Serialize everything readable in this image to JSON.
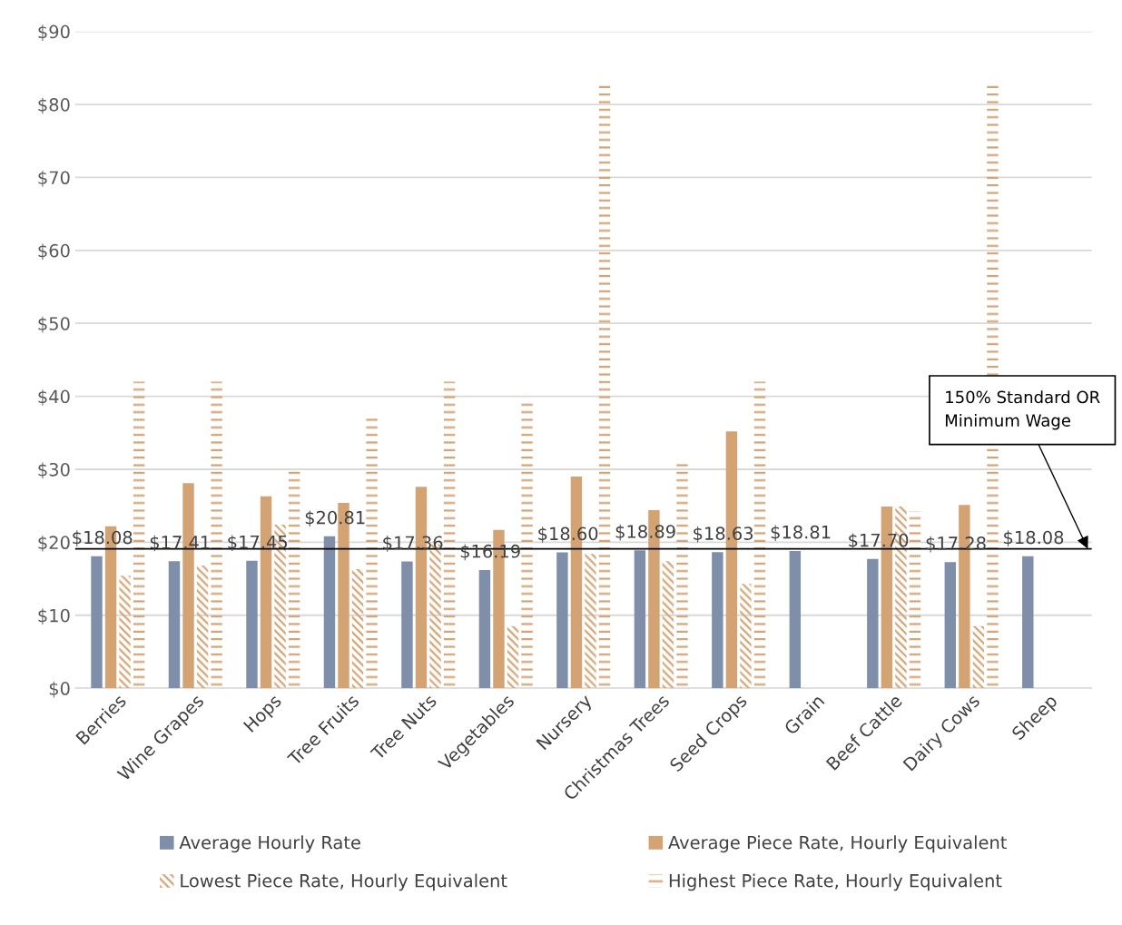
{
  "chart_data": {
    "type": "bar",
    "categories": [
      "Berries",
      "Wine Grapes",
      "Hops",
      "Tree Fruits",
      "Tree Nuts",
      "Vegetables",
      "Nursery",
      "Christmas Trees",
      "Seed Crops",
      "Grain",
      "Beef Cattle",
      "Dairy Cows",
      "Sheep"
    ],
    "series": [
      {
        "name": "Average Hourly Rate",
        "color": "#7f8fa9",
        "values": [
          18.08,
          17.41,
          17.45,
          20.81,
          17.36,
          16.19,
          18.6,
          18.89,
          18.63,
          18.81,
          17.7,
          17.28,
          18.08
        ],
        "value_labels": [
          "$18.08",
          "$17.41",
          "$17.45",
          "$20.81",
          "$17.36",
          "$16.19",
          "$18.60",
          "$18.89",
          "$18.63",
          "$18.81",
          "$17.70",
          "$17.28",
          "$18.08"
        ]
      },
      {
        "name": "Average Piece Rate, Hourly Equivalent",
        "color": "#d4a373",
        "values": [
          22.2,
          28.1,
          26.3,
          25.4,
          27.6,
          21.7,
          29.0,
          24.4,
          35.2,
          null,
          24.9,
          25.1,
          null
        ]
      },
      {
        "name": "Lowest Piece Rate, Hourly Equivalent",
        "color": "#d4a373",
        "values": [
          15.4,
          16.8,
          22.4,
          16.3,
          19.7,
          8.5,
          18.4,
          17.4,
          14.3,
          null,
          24.9,
          8.5,
          null
        ]
      },
      {
        "name": "Highest Piece Rate, Hourly Equivalent",
        "color": "#d4a373",
        "values": [
          42.0,
          42.0,
          29.9,
          37.1,
          42.0,
          39.6,
          83.0,
          31.0,
          42.0,
          null,
          24.2,
          83.0,
          null
        ]
      }
    ],
    "ylim": [
      0,
      90
    ],
    "yticks": [
      {
        "value": 0,
        "label": "$0"
      },
      {
        "value": 10,
        "label": "$10"
      },
      {
        "value": 20,
        "label": "$20"
      },
      {
        "value": 30,
        "label": "$30"
      },
      {
        "value": 40,
        "label": "$40"
      },
      {
        "value": 50,
        "label": "$50"
      },
      {
        "value": 60,
        "label": "$60"
      },
      {
        "value": 70,
        "label": "$70"
      },
      {
        "value": 80,
        "label": "$80"
      },
      {
        "value": 90,
        "label": "$90"
      }
    ],
    "ref_lines": [
      {
        "axis": "y",
        "value": 19.1,
        "label": "150% Standard OR\nMinimum Wage",
        "color": "#000000"
      }
    ],
    "grid": "y",
    "legend": "bottom"
  }
}
